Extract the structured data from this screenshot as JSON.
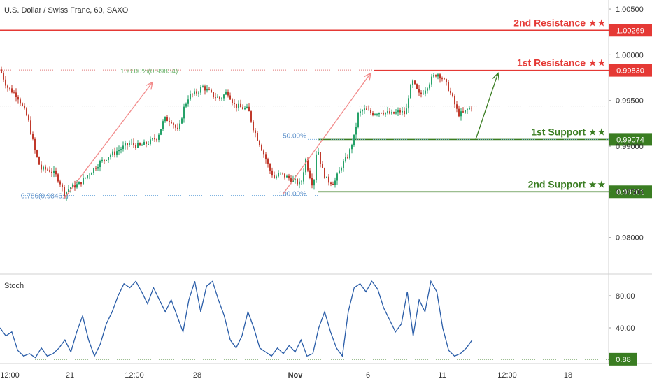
{
  "header": {
    "symbol_label": "U.S. Dollar / Swiss Franc, 60, SAXO"
  },
  "chart_data": [
    {
      "type": "candlestick",
      "title": "U.S. Dollar / Swiss Franc, 60, SAXO",
      "y_axis": {
        "range": [
          0.976,
          1.006
        ],
        "tick_values": [
          0.98,
          0.985,
          0.99,
          0.995,
          1.0,
          1.005
        ],
        "tick_labels": [
          "0.98000",
          "0.98500",
          "0.99000",
          "0.99500",
          "1.00000",
          "1.00500"
        ],
        "position": "right"
      },
      "x_axis": {
        "tick_labels": [
          "12:00",
          "21",
          "12:00",
          "28",
          "Nov",
          "6",
          "11",
          "12:00",
          "18"
        ],
        "bold_labels": [
          "Nov"
        ]
      },
      "grid": false,
      "price_path": [
        [
          0,
          0.9984
        ],
        [
          10,
          0.9965
        ],
        [
          25,
          0.9955
        ],
        [
          40,
          0.993
        ],
        [
          50,
          0.9895
        ],
        [
          58,
          0.9875
        ],
        [
          70,
          0.9874
        ],
        [
          78,
          0.987
        ],
        [
          85,
          0.9862
        ],
        [
          92,
          0.9848
        ],
        [
          100,
          0.9855
        ],
        [
          112,
          0.9858
        ],
        [
          125,
          0.9868
        ],
        [
          140,
          0.988
        ],
        [
          155,
          0.9889
        ],
        [
          170,
          0.9896
        ],
        [
          185,
          0.9903
        ],
        [
          200,
          0.99
        ],
        [
          215,
          0.9905
        ],
        [
          225,
          0.991
        ],
        [
          235,
          0.993
        ],
        [
          245,
          0.9928
        ],
        [
          255,
          0.9915
        ],
        [
          262,
          0.994
        ],
        [
          270,
          0.9955
        ],
        [
          280,
          0.9958
        ],
        [
          290,
          0.9965
        ],
        [
          298,
          0.996
        ],
        [
          305,
          0.9955
        ],
        [
          315,
          0.9952
        ],
        [
          325,
          0.996
        ],
        [
          335,
          0.9945
        ],
        [
          345,
          0.9942
        ],
        [
          355,
          0.994
        ],
        [
          362,
          0.992
        ],
        [
          370,
          0.9905
        ],
        [
          378,
          0.989
        ],
        [
          385,
          0.9875
        ],
        [
          392,
          0.9865
        ],
        [
          400,
          0.987
        ],
        [
          410,
          0.9866
        ],
        [
          420,
          0.9862
        ],
        [
          430,
          0.9858
        ],
        [
          437,
          0.9885
        ],
        [
          442,
          0.987
        ],
        [
          448,
          0.9855
        ],
        [
          453,
          0.9902
        ],
        [
          460,
          0.9875
        ],
        [
          468,
          0.9862
        ],
        [
          478,
          0.986
        ],
        [
          488,
          0.9878
        ],
        [
          498,
          0.989
        ],
        [
          506,
          0.991
        ],
        [
          512,
          0.9935
        ],
        [
          520,
          0.994
        ],
        [
          532,
          0.9936
        ],
        [
          545,
          0.9938
        ],
        [
          560,
          0.9935
        ],
        [
          572,
          0.9938
        ],
        [
          580,
          0.9935
        ],
        [
          585,
          0.996
        ],
        [
          590,
          0.997
        ],
        [
          600,
          0.9955
        ],
        [
          610,
          0.9965
        ],
        [
          618,
          0.9975
        ],
        [
          625,
          0.998
        ],
        [
          632,
          0.9975
        ],
        [
          640,
          0.9965
        ],
        [
          648,
          0.995
        ],
        [
          655,
          0.9935
        ],
        [
          662,
          0.9936
        ],
        [
          668,
          0.994
        ],
        [
          675,
          0.9944
        ]
      ],
      "levels": [
        {
          "label": "2nd Resistance ★★",
          "value_label": "1.00269",
          "value": 1.00269,
          "color": "#e53935"
        },
        {
          "label": "1st Resistance ★★",
          "value_label": "0.99830",
          "value": 0.9983,
          "color": "#e53935"
        },
        {
          "label": "1st Support ★★",
          "value_label": "0.99074",
          "value": 0.99074,
          "color": "#3a7d22"
        },
        {
          "label": "2nd Support ★★",
          "value_label": "0.98501",
          "value": 0.98501,
          "color": "#3a7d22"
        }
      ],
      "current_price": 0.9944,
      "fib_left": {
        "high_label": "100.00%(0.99834)",
        "high_value": 0.99834,
        "low_label": "0.786(0.98461)",
        "low_value": 0.98461,
        "color": "#7fb3e0",
        "high_label_color": "#6db36d"
      },
      "fib_right": {
        "level_50_label": "50.00%",
        "level_50_value": 0.99074,
        "level_100_label": "100.00%",
        "level_100_value": 0.98501
      },
      "colors": {
        "up": "#26a269",
        "down": "#c0392b",
        "arrow_red": "#f28b8b",
        "arrow_green": "#3a7d22"
      }
    },
    {
      "type": "line",
      "name": "Stoch",
      "title": "Stoch",
      "y_axis": {
        "range": [
          0,
          100
        ],
        "tick_values": [
          40,
          80
        ],
        "tick_labels": [
          "40.00",
          "80.00"
        ],
        "position": "right"
      },
      "series": [
        {
          "values": [
            40,
            30,
            35,
            12,
            5,
            8,
            3,
            15,
            5,
            8,
            15,
            25,
            10,
            35,
            55,
            25,
            5,
            20,
            45,
            60,
            80,
            95,
            90,
            98,
            85,
            70,
            90,
            75,
            60,
            75,
            55,
            35,
            75,
            98,
            60,
            92,
            98,
            75,
            55,
            25,
            15,
            30,
            60,
            40,
            15,
            10,
            5,
            15,
            8,
            18,
            10,
            25,
            5,
            8,
            40,
            60,
            35,
            15,
            5,
            60,
            90,
            95,
            85,
            98,
            88,
            65,
            50,
            35,
            45,
            85,
            30,
            75,
            60,
            98,
            85,
            40,
            12,
            5,
            8,
            15,
            25
          ],
          "color": "#2a5da8"
        }
      ],
      "current_value_label": "0.88",
      "baseline_value": 1
    }
  ]
}
